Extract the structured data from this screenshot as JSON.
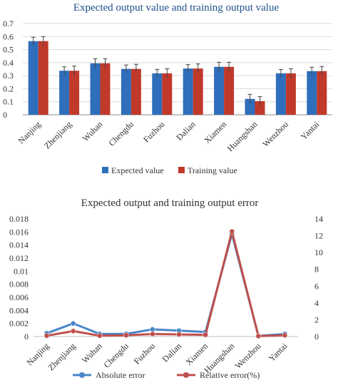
{
  "chart_data": [
    {
      "type": "bar",
      "title": "Expected output value and training output value",
      "categories": [
        "Nanjing",
        "Zhenjiang",
        "Wuhan",
        "Chengdu",
        "Fuzhou",
        "Dalian",
        "Xiamen",
        "Huangshan",
        "Wenzhou",
        "Yantai"
      ],
      "series": [
        {
          "name": "Expected value",
          "values": [
            0.565,
            0.338,
            0.395,
            0.352,
            0.318,
            0.355,
            0.368,
            0.122,
            0.318,
            0.335
          ],
          "errors": [
            0.03,
            0.03,
            0.035,
            0.03,
            0.03,
            0.03,
            0.035,
            0.035,
            0.03,
            0.03
          ],
          "color": "#2f6eba"
        },
        {
          "name": "Training value",
          "values": [
            0.565,
            0.338,
            0.395,
            0.352,
            0.318,
            0.355,
            0.368,
            0.105,
            0.318,
            0.335
          ],
          "errors": [
            0.035,
            0.035,
            0.035,
            0.035,
            0.035,
            0.035,
            0.035,
            0.035,
            0.035,
            0.035
          ],
          "color": "#c0392b"
        }
      ],
      "ylim": [
        0,
        0.7
      ],
      "yticks": [
        "0",
        "0.1",
        "0.2",
        "0.3",
        "0.4",
        "0.5",
        "0.6",
        "0.7"
      ],
      "grid": true,
      "legend": "bottom",
      "error_bars": true
    },
    {
      "type": "line",
      "title": "Expected output and training output error",
      "categories": [
        "Nanjing",
        "Zhenjiang",
        "Wuhan",
        "Chengdu",
        "Fuzhou",
        "Dalian",
        "Xiamen",
        "Huangshan",
        "Wenzhou",
        "Yantai"
      ],
      "series": [
        {
          "name": "Absolute error",
          "axis": "left",
          "values": [
            0.0005,
            0.002,
            0.0004,
            0.0004,
            0.0011,
            0.0009,
            0.0007,
            0.0157,
            0.0001,
            0.0004
          ],
          "color": "#4a86c8"
        },
        {
          "name": "Relative error(%)",
          "axis": "right",
          "values": [
            0.1,
            0.65,
            0.1,
            0.15,
            0.3,
            0.25,
            0.2,
            12.5,
            0.05,
            0.15
          ],
          "color": "#c0504d"
        }
      ],
      "ylim": [
        0,
        0.018
      ],
      "yticks": [
        "0",
        "0.002",
        "0.004",
        "0.006",
        "0.008",
        "0.01",
        "0.012",
        "0.014",
        "0.016",
        "0.018"
      ],
      "y2lim": [
        0,
        14
      ],
      "y2ticks": [
        "0",
        "2",
        "4",
        "6",
        "8",
        "10",
        "12",
        "14"
      ],
      "grid": false,
      "legend": "bottom"
    }
  ]
}
